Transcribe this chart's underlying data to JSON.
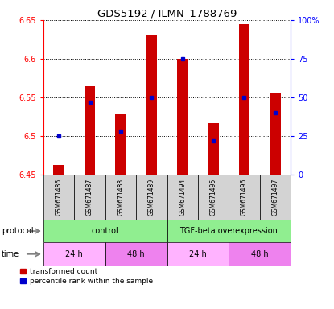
{
  "title": "GDS5192 / ILMN_1788769",
  "samples": [
    "GSM671486",
    "GSM671487",
    "GSM671488",
    "GSM671489",
    "GSM671494",
    "GSM671495",
    "GSM671496",
    "GSM671497"
  ],
  "transformed_counts": [
    6.462,
    6.565,
    6.528,
    6.63,
    6.6,
    6.517,
    6.645,
    6.555
  ],
  "percentile_ranks": [
    25,
    47,
    28,
    50,
    75,
    22,
    50,
    40
  ],
  "y_min": 6.45,
  "y_max": 6.65,
  "y_ticks": [
    6.45,
    6.5,
    6.55,
    6.6,
    6.65
  ],
  "right_y_ticks": [
    0,
    25,
    50,
    75,
    100
  ],
  "right_y_labels": [
    "0",
    "25",
    "50",
    "75",
    "100%"
  ],
  "protocol_groups": [
    {
      "label": "control",
      "start": 0,
      "end": 4,
      "color": "#90EE90"
    },
    {
      "label": "TGF-beta overexpression",
      "start": 4,
      "end": 8,
      "color": "#90EE90"
    }
  ],
  "time_groups": [
    {
      "label": "24 h",
      "start": 0,
      "end": 2,
      "color": "#FFB3FF"
    },
    {
      "label": "48 h",
      "start": 2,
      "end": 4,
      "color": "#EE82EE"
    },
    {
      "label": "24 h",
      "start": 4,
      "end": 6,
      "color": "#FFB3FF"
    },
    {
      "label": "48 h",
      "start": 6,
      "end": 8,
      "color": "#EE82EE"
    }
  ],
  "bar_color": "#CC0000",
  "percentile_color": "#0000CC",
  "legend_items": [
    {
      "label": "transformed count",
      "color": "#CC0000"
    },
    {
      "label": "percentile rank within the sample",
      "color": "#0000CC"
    }
  ],
  "bar_width": 0.35,
  "baseline": 6.45
}
